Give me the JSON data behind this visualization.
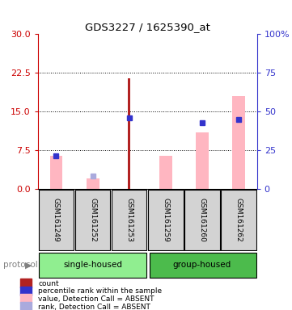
{
  "title": "GDS3227 / 1625390_at",
  "samples": [
    "GSM161249",
    "GSM161252",
    "GSM161253",
    "GSM161259",
    "GSM161260",
    "GSM161262"
  ],
  "left_axis": {
    "min": 0,
    "max": 30,
    "ticks": [
      0,
      7.5,
      15,
      22.5,
      30
    ]
  },
  "right_axis": {
    "min": 0,
    "max": 100,
    "ticks": [
      0,
      25,
      50,
      75,
      100
    ],
    "tick_labels": [
      "0",
      "25",
      "50",
      "75",
      "100%"
    ]
  },
  "count_bars": {
    "GSM161249": null,
    "GSM161252": null,
    "GSM161253": 21.5,
    "GSM161259": null,
    "GSM161260": null,
    "GSM161262": null
  },
  "value_absent_bars": {
    "GSM161249": 6.5,
    "GSM161252": 2.0,
    "GSM161253": null,
    "GSM161259": 6.5,
    "GSM161260": 11.0,
    "GSM161262": 18.0
  },
  "rank_absent_marker": {
    "GSM161249": null,
    "GSM161252": 2.5,
    "GSM161253": null,
    "GSM161259": null,
    "GSM161260": null,
    "GSM161262": null
  },
  "percentile_rank_marker": {
    "GSM161249": 6.5,
    "GSM161252": null,
    "GSM161253": 13.8,
    "GSM161259": null,
    "GSM161260": 12.8,
    "GSM161262": 13.5
  },
  "colors": {
    "count": "#B22222",
    "percentile_rank": "#3333CC",
    "value_absent": "#FFB6C1",
    "rank_absent": "#AAAADD",
    "group_single": "#90EE90",
    "group_group": "#4CBB4C",
    "bg_sample": "#D3D3D3",
    "axis_left_color": "#CC0000",
    "axis_right_color": "#3333CC"
  },
  "legend_items": [
    {
      "label": "count",
      "color": "#B22222"
    },
    {
      "label": "percentile rank within the sample",
      "color": "#3333CC"
    },
    {
      "label": "value, Detection Call = ABSENT",
      "color": "#FFB6C1"
    },
    {
      "label": "rank, Detection Call = ABSENT",
      "color": "#AAAADD"
    }
  ],
  "protocol_label": "protocol",
  "group_single_name": "single-housed",
  "group_group_name": "group-housed"
}
